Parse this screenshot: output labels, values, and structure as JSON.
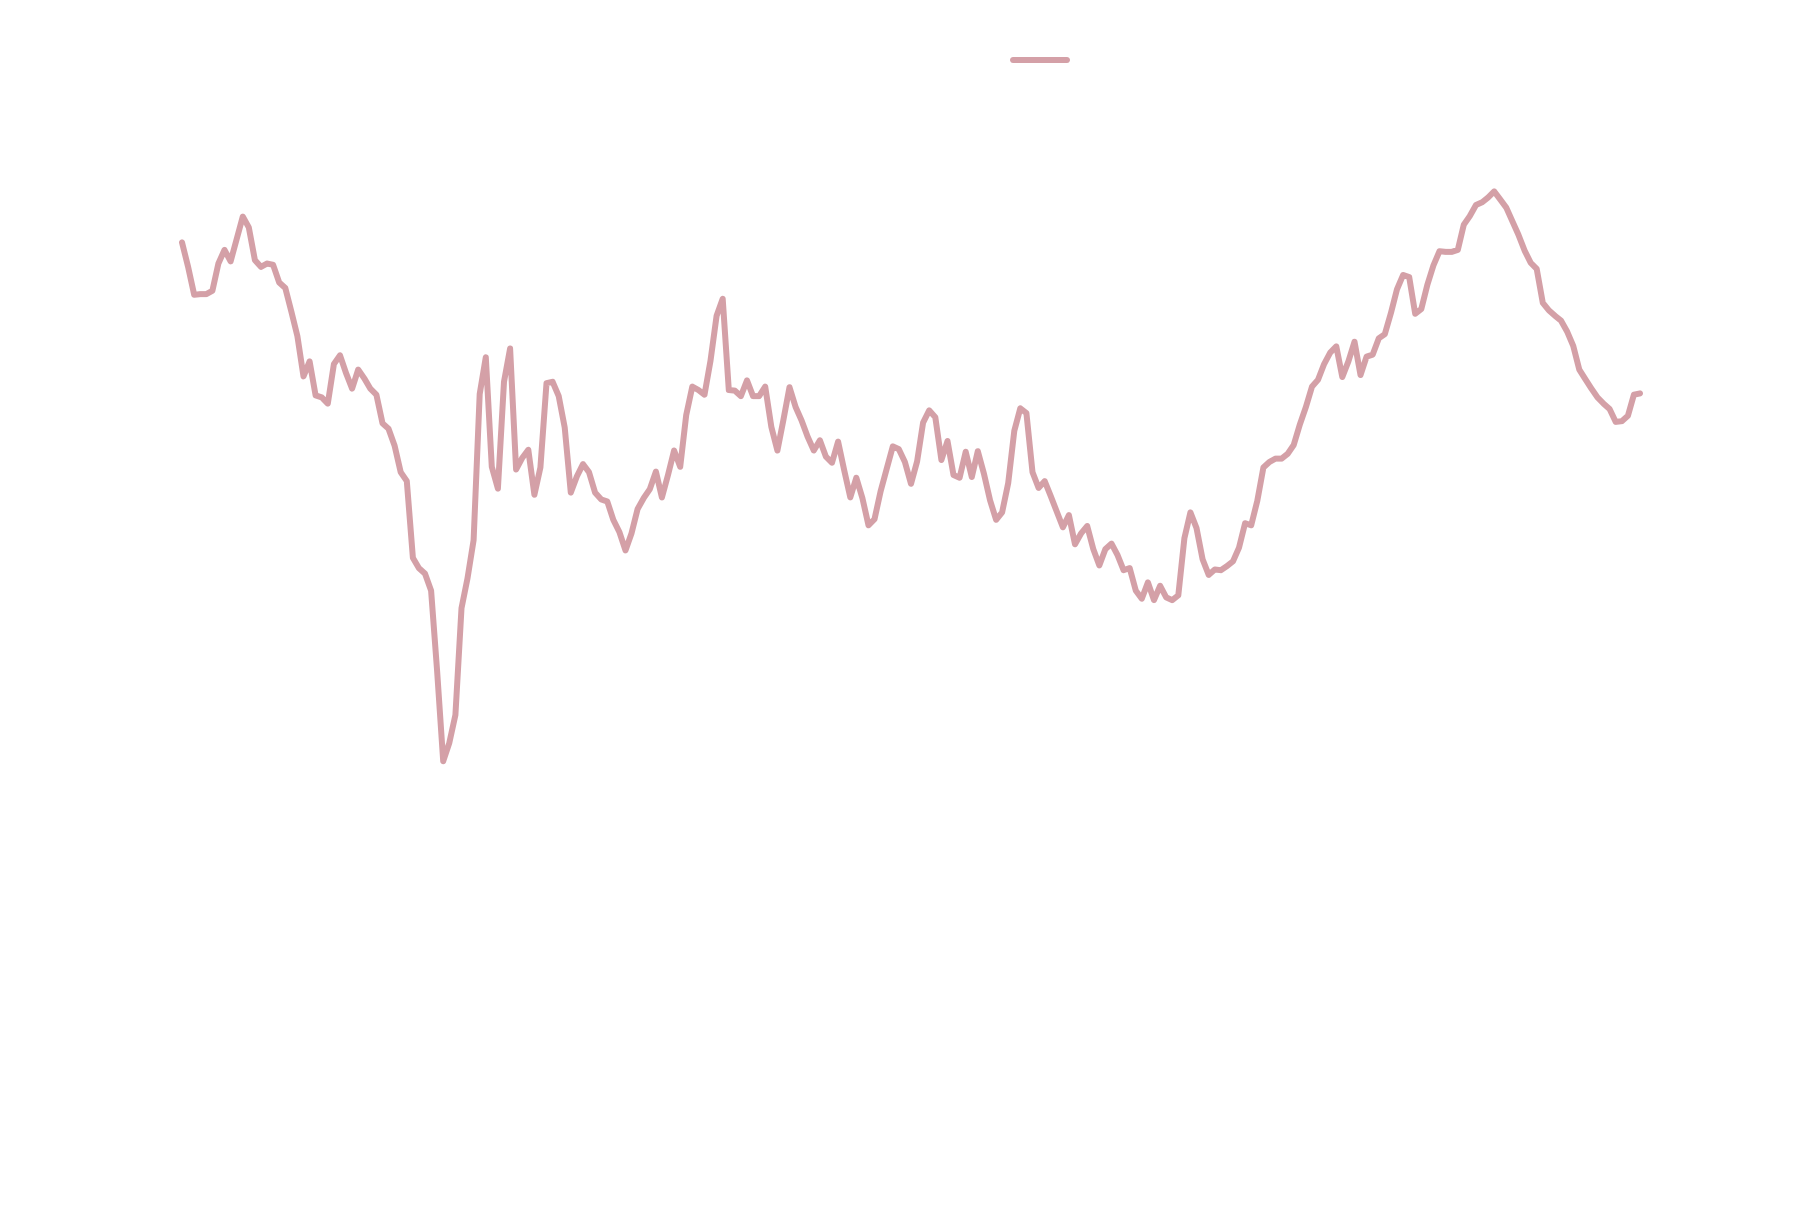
{
  "chart_data": {
    "type": "line",
    "title": "",
    "xlabel": "",
    "ylabel": "",
    "grid": false,
    "legend": {
      "position": "top-center",
      "entries": [
        {
          "label": "",
          "color": "#d4a0a7"
        }
      ]
    },
    "ylim": [
      0,
      100
    ],
    "series": [
      {
        "name": "",
        "color": "#d4a0a7",
        "points": [
          [
            0,
            82.0
          ],
          [
            1,
            78.4
          ],
          [
            2,
            74.3
          ],
          [
            3,
            74.4
          ],
          [
            4,
            74.4
          ],
          [
            5,
            74.9
          ],
          [
            6,
            78.9
          ],
          [
            7,
            80.9
          ],
          [
            8,
            79.2
          ],
          [
            9,
            82.5
          ],
          [
            10,
            85.8
          ],
          [
            11,
            84.2
          ],
          [
            12,
            79.4
          ],
          [
            13,
            78.4
          ],
          [
            14,
            78.9
          ],
          [
            15,
            78.7
          ],
          [
            16,
            76.1
          ],
          [
            17,
            75.3
          ],
          [
            18,
            71.8
          ],
          [
            19,
            68.2
          ],
          [
            20,
            62.3
          ],
          [
            21,
            64.5
          ],
          [
            22,
            59.5
          ],
          [
            23,
            59.2
          ],
          [
            24,
            58.3
          ],
          [
            25,
            64.1
          ],
          [
            26,
            65.4
          ],
          [
            27,
            62.8
          ],
          [
            28,
            60.5
          ],
          [
            29,
            63.3
          ],
          [
            30,
            62.0
          ],
          [
            31,
            60.5
          ],
          [
            32,
            59.6
          ],
          [
            33,
            55.4
          ],
          [
            34,
            54.6
          ],
          [
            35,
            52.1
          ],
          [
            36,
            48.2
          ],
          [
            37,
            46.9
          ],
          [
            38,
            35.6
          ],
          [
            39,
            34.1
          ],
          [
            40,
            33.3
          ],
          [
            41,
            30.8
          ],
          [
            42,
            19.0
          ],
          [
            43,
            5.7
          ],
          [
            44,
            8.4
          ],
          [
            45,
            12.5
          ],
          [
            46,
            28.2
          ],
          [
            47,
            32.6
          ],
          [
            48,
            38.2
          ],
          [
            49,
            59.7
          ],
          [
            50,
            65.1
          ],
          [
            51,
            49.0
          ],
          [
            52,
            45.8
          ],
          [
            53,
            61.5
          ],
          [
            54,
            66.4
          ],
          [
            55,
            48.6
          ],
          [
            56,
            50.3
          ],
          [
            57,
            51.5
          ],
          [
            58,
            44.9
          ],
          [
            59,
            48.9
          ],
          [
            60,
            61.3
          ],
          [
            61,
            61.5
          ],
          [
            62,
            59.4
          ],
          [
            63,
            54.8
          ],
          [
            64,
            45.2
          ],
          [
            65,
            47.6
          ],
          [
            66,
            49.4
          ],
          [
            67,
            48.2
          ],
          [
            68,
            45.2
          ],
          [
            69,
            44.2
          ],
          [
            70,
            43.9
          ],
          [
            71,
            41.2
          ],
          [
            72,
            39.4
          ],
          [
            73,
            36.7
          ],
          [
            74,
            39.2
          ],
          [
            75,
            42.8
          ],
          [
            76,
            44.4
          ],
          [
            77,
            45.7
          ],
          [
            78,
            48.3
          ],
          [
            79,
            44.5
          ],
          [
            80,
            47.8
          ],
          [
            81,
            51.4
          ],
          [
            82,
            49.0
          ],
          [
            83,
            56.6
          ],
          [
            84,
            60.8
          ],
          [
            85,
            60.3
          ],
          [
            86,
            59.6
          ],
          [
            87,
            64.6
          ],
          [
            88,
            71.2
          ],
          [
            89,
            73.7
          ],
          [
            90,
            60.3
          ],
          [
            91,
            60.2
          ],
          [
            92,
            59.4
          ],
          [
            93,
            61.7
          ],
          [
            94,
            59.4
          ],
          [
            95,
            59.4
          ],
          [
            96,
            60.8
          ],
          [
            97,
            54.9
          ],
          [
            98,
            51.4
          ],
          [
            99,
            55.9
          ],
          [
            100,
            60.7
          ],
          [
            101,
            57.8
          ],
          [
            102,
            55.8
          ],
          [
            103,
            53.4
          ],
          [
            104,
            51.4
          ],
          [
            105,
            52.9
          ],
          [
            106,
            50.5
          ],
          [
            107,
            49.6
          ],
          [
            108,
            52.7
          ],
          [
            109,
            48.5
          ],
          [
            110,
            44.5
          ],
          [
            111,
            47.4
          ],
          [
            112,
            44.4
          ],
          [
            113,
            40.4
          ],
          [
            114,
            41.3
          ],
          [
            115,
            45.4
          ],
          [
            116,
            48.7
          ],
          [
            117,
            52.0
          ],
          [
            118,
            51.6
          ],
          [
            119,
            49.7
          ],
          [
            120,
            46.5
          ],
          [
            121,
            49.8
          ],
          [
            122,
            55.5
          ],
          [
            123,
            57.3
          ],
          [
            124,
            56.3
          ],
          [
            125,
            50.0
          ],
          [
            126,
            52.8
          ],
          [
            127,
            47.8
          ],
          [
            128,
            47.4
          ],
          [
            129,
            51.2
          ],
          [
            130,
            47.5
          ],
          [
            131,
            51.3
          ],
          [
            132,
            48.0
          ],
          [
            133,
            44.1
          ],
          [
            134,
            41.2
          ],
          [
            135,
            42.3
          ],
          [
            136,
            46.6
          ],
          [
            137,
            54.3
          ],
          [
            138,
            57.6
          ],
          [
            139,
            56.9
          ],
          [
            140,
            48.2
          ],
          [
            141,
            45.9
          ],
          [
            142,
            46.9
          ],
          [
            143,
            44.7
          ],
          [
            144,
            42.4
          ],
          [
            145,
            40.1
          ],
          [
            146,
            41.9
          ],
          [
            147,
            37.6
          ],
          [
            148,
            39.2
          ],
          [
            149,
            40.3
          ],
          [
            150,
            36.9
          ],
          [
            151,
            34.5
          ],
          [
            152,
            36.9
          ],
          [
            153,
            37.7
          ],
          [
            154,
            36.0
          ],
          [
            155,
            33.8
          ],
          [
            156,
            34.1
          ],
          [
            157,
            30.8
          ],
          [
            158,
            29.6
          ],
          [
            159,
            32.0
          ],
          [
            160,
            29.4
          ],
          [
            161,
            31.5
          ],
          [
            162,
            29.8
          ],
          [
            163,
            29.4
          ],
          [
            164,
            30.1
          ],
          [
            165,
            38.5
          ],
          [
            166,
            42.3
          ],
          [
            167,
            40.0
          ],
          [
            168,
            35.4
          ],
          [
            169,
            33.1
          ],
          [
            170,
            33.9
          ],
          [
            171,
            33.8
          ],
          [
            172,
            34.4
          ],
          [
            173,
            35.1
          ],
          [
            174,
            37.1
          ],
          [
            175,
            40.7
          ],
          [
            176,
            40.4
          ],
          [
            177,
            44.0
          ],
          [
            178,
            48.9
          ],
          [
            179,
            49.7
          ],
          [
            180,
            50.2
          ],
          [
            181,
            50.2
          ],
          [
            182,
            50.9
          ],
          [
            183,
            52.2
          ],
          [
            184,
            55.2
          ],
          [
            185,
            57.8
          ],
          [
            186,
            60.8
          ],
          [
            187,
            61.8
          ],
          [
            188,
            64.1
          ],
          [
            189,
            65.8
          ],
          [
            190,
            66.7
          ],
          [
            191,
            62.2
          ],
          [
            192,
            64.5
          ],
          [
            193,
            67.4
          ],
          [
            194,
            62.5
          ],
          [
            195,
            65.2
          ],
          [
            196,
            65.5
          ],
          [
            197,
            67.9
          ],
          [
            198,
            68.5
          ],
          [
            199,
            71.6
          ],
          [
            200,
            75.1
          ],
          [
            201,
            77.2
          ],
          [
            202,
            76.9
          ],
          [
            203,
            71.5
          ],
          [
            204,
            72.2
          ],
          [
            205,
            75.8
          ],
          [
            206,
            78.6
          ],
          [
            207,
            80.7
          ],
          [
            208,
            80.6
          ],
          [
            209,
            80.6
          ],
          [
            210,
            80.9
          ],
          [
            211,
            84.6
          ],
          [
            212,
            85.9
          ],
          [
            213,
            87.5
          ],
          [
            214,
            87.9
          ],
          [
            215,
            88.6
          ],
          [
            216,
            89.5
          ],
          [
            217,
            88.3
          ],
          [
            218,
            87.1
          ],
          [
            219,
            85.1
          ],
          [
            220,
            83.1
          ],
          [
            221,
            80.8
          ],
          [
            222,
            79.0
          ],
          [
            223,
            78.1
          ],
          [
            224,
            73.1
          ],
          [
            225,
            72.0
          ],
          [
            226,
            71.2
          ],
          [
            227,
            70.5
          ],
          [
            228,
            68.9
          ],
          [
            229,
            66.8
          ],
          [
            230,
            63.3
          ],
          [
            231,
            61.9
          ],
          [
            232,
            60.5
          ],
          [
            233,
            59.2
          ],
          [
            234,
            58.3
          ],
          [
            235,
            57.5
          ],
          [
            236,
            55.6
          ],
          [
            237,
            55.7
          ],
          [
            238,
            56.5
          ],
          [
            239,
            59.6
          ],
          [
            240,
            59.8
          ]
        ]
      }
    ]
  }
}
